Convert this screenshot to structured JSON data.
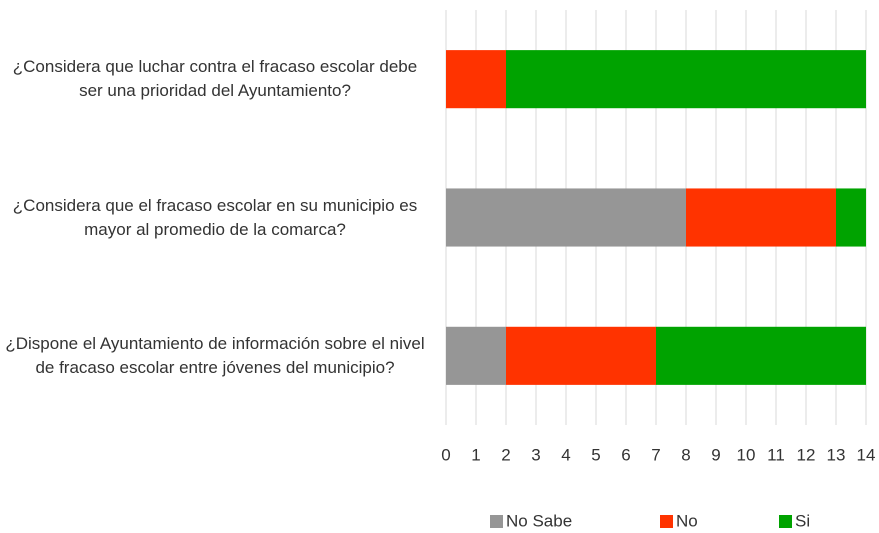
{
  "chart_data": {
    "type": "stacked-barh",
    "categories": [
      "¿Considera que luchar contra el fracaso escolar debe ser una prioridad del Ayuntamiento?",
      "¿Considera que el fracaso escolar en su municipio es mayor al promedio de la comarca?",
      "¿Dispone el Ayuntamiento de información sobre el nivel de fracaso escolar entre jóvenes del municipio?"
    ],
    "series": [
      {
        "name": "No Sabe",
        "color": "#969696",
        "values": [
          0,
          8,
          2
        ]
      },
      {
        "name": "No",
        "color": "#ff3300",
        "values": [
          2,
          5,
          5
        ]
      },
      {
        "name": "Si",
        "color": "#00a300",
        "values": [
          12,
          1,
          7
        ]
      }
    ],
    "xlim": [
      0,
      14
    ],
    "xticks": [
      0,
      1,
      2,
      3,
      4,
      5,
      6,
      7,
      8,
      9,
      10,
      11,
      12,
      13,
      14
    ],
    "grid": true,
    "legend": "bottom"
  }
}
